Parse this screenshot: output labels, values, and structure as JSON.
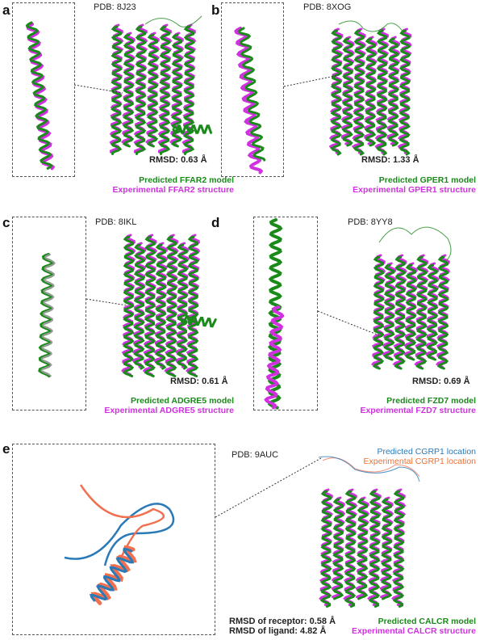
{
  "colors": {
    "predicted": "#1a8a1a",
    "experimental": "#d030e0",
    "predicted_ligand": "#2a7ab8",
    "experimental_ligand": "#f07050"
  },
  "panels": [
    {
      "label": "a",
      "pdb": "PDB: 8J23",
      "rmsd": "RMSD: 0.63 Å",
      "predicted": "Predicted FFAR2 model",
      "experimental": "Experimental FFAR2 structure"
    },
    {
      "label": "b",
      "pdb": "PDB: 8XOG",
      "rmsd": "RMSD: 1.33 Å",
      "predicted": "Predicted GPER1 model",
      "experimental": "Experimental GPER1 structure"
    },
    {
      "label": "c",
      "pdb": "PDB: 8IKL",
      "rmsd": "RMSD: 0.61 Å",
      "predicted": "Predicted ADGRE5 model",
      "experimental": "Experimental ADGRE5 structure"
    },
    {
      "label": "d",
      "pdb": "PDB: 8YY8",
      "rmsd": "RMSD: 0.69 Å",
      "predicted": "Predicted FZD7 model",
      "experimental": "Experimental FZD7 structure"
    },
    {
      "label": "e",
      "pdb": "PDB: 9AUC",
      "rmsd_receptor": "RMSD of receptor: 0.58 Å",
      "rmsd_ligand": "RMSD of ligand: 4.82 Å",
      "predicted": "Predicted CALCR model",
      "experimental": "Experimental CALCR structure",
      "predicted_ligand": "Predicted CGRP1 location",
      "experimental_ligand": "Experimental CGRP1 location"
    }
  ]
}
